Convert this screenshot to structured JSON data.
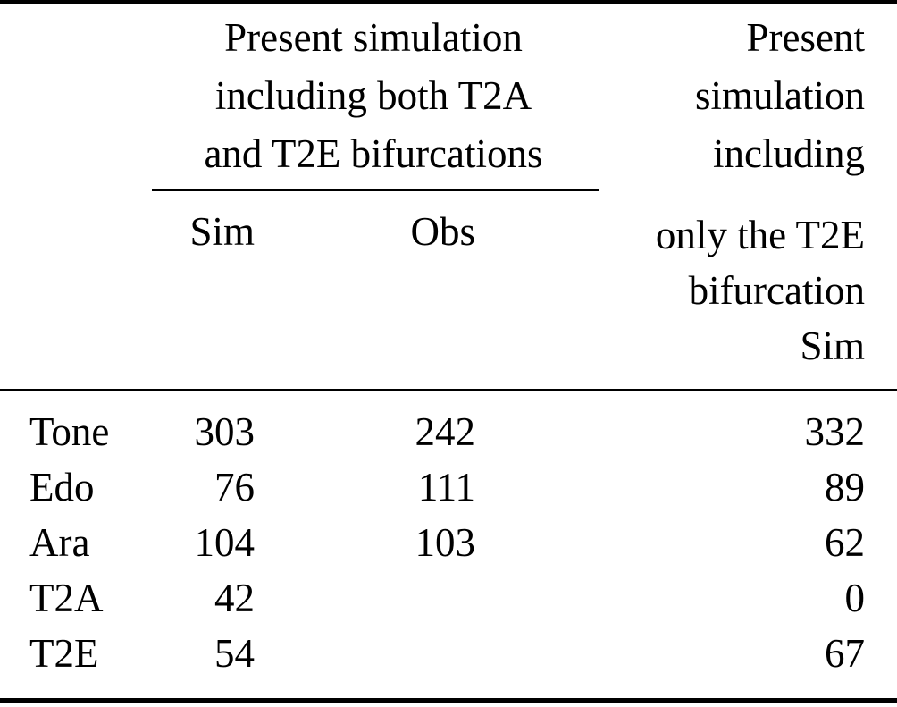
{
  "table": {
    "group_header": {
      "lines": [
        "Present simulation",
        "including both T2A",
        "and T2E bifurcations"
      ]
    },
    "right_header": {
      "lines_top": [
        "Present",
        "simulation",
        "including"
      ],
      "lines_bottom": [
        "only the T2E",
        "bifurcation",
        "Sim"
      ]
    },
    "sub_headers": {
      "sim": "Sim",
      "obs": "Obs"
    },
    "rows": [
      {
        "label": "Tone",
        "sim": "303",
        "obs": "242",
        "t2e_only_sim": "332"
      },
      {
        "label": "Edo",
        "sim": "76",
        "obs": "111",
        "t2e_only_sim": "89"
      },
      {
        "label": "Ara",
        "sim": "104",
        "obs": "103",
        "t2e_only_sim": "62"
      },
      {
        "label": "T2A",
        "sim": "42",
        "obs": "",
        "t2e_only_sim": "0"
      },
      {
        "label": "T2E",
        "sim": "54",
        "obs": "",
        "t2e_only_sim": "67"
      }
    ],
    "colors": {
      "text": "#000000",
      "rule": "#000000",
      "background": "#ffffff"
    }
  }
}
